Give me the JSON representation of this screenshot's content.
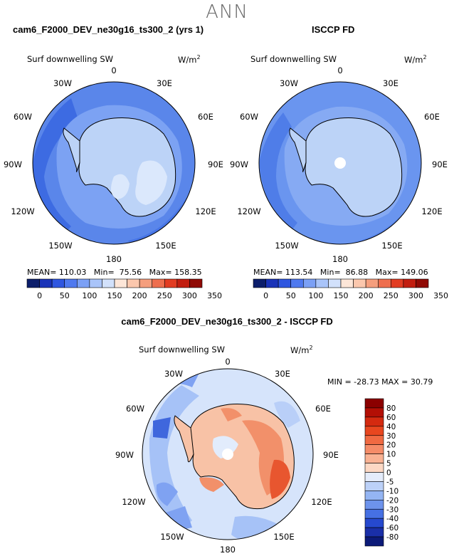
{
  "season": "ANN",
  "panel_left": {
    "title": "cam6_F2000_DEV_ne30g16_ts300_2 (yrs 1)",
    "variable": "Surf downwelling SW",
    "units": "W/m",
    "units_exp": "2",
    "stats": {
      "mean_label": "MEAN=",
      "mean": "110.03",
      "min_label": "Min=",
      "min": "75.56",
      "max_label": "Max=",
      "max": "158.35"
    }
  },
  "panel_right": {
    "title": "ISCCP FD",
    "variable": "Surf downwelling SW",
    "units": "W/m",
    "units_exp": "2",
    "stats": {
      "mean_label": "MEAN=",
      "mean": "113.54",
      "min_label": "Min=",
      "min": "86.88",
      "max_label": "Max=",
      "max": "149.06"
    }
  },
  "panel_diff": {
    "title": "cam6_F2000_DEV_ne30g16_ts300_2 - ISCCP FD",
    "variable": "Surf downwelling SW",
    "units": "W/m",
    "units_exp": "2",
    "minmax": "MIN = -28.73 MAX =  30.79"
  },
  "lon_labels": [
    "0",
    "30E",
    "60E",
    "90E",
    "120E",
    "150E",
    "180",
    "150W",
    "120W",
    "90W",
    "60W",
    "30W"
  ],
  "colorbar_top": {
    "labels": [
      "0",
      "50",
      "100",
      "150",
      "200",
      "250",
      "300",
      "350"
    ],
    "colors": [
      "#0c1e6b",
      "#1a33b8",
      "#2f56e0",
      "#4f79ef",
      "#7ba0f5",
      "#a9c4f9",
      "#d2e1fb",
      "#fde6d8",
      "#fbc7ad",
      "#f59e7d",
      "#ee6e4e",
      "#e23c22",
      "#c21e10",
      "#900a05"
    ]
  },
  "colorbar_diff": {
    "labels": [
      "80",
      "60",
      "40",
      "30",
      "20",
      "10",
      "5",
      "0",
      "-5",
      "-10",
      "-20",
      "-30",
      "-40",
      "-60",
      "-80"
    ],
    "colors": [
      "#8b0000",
      "#b30f05",
      "#d42a10",
      "#e8471f",
      "#f06a42",
      "#f58c68",
      "#f9b293",
      "#fcd8c4",
      "#e4ecfb",
      "#bcd1f8",
      "#94b5f3",
      "#6d93ec",
      "#4670e3",
      "#2649cf",
      "#1a2fa8",
      "#0c1a78"
    ]
  },
  "colors": {
    "land_fill_model": "#bcd3f7",
    "land_fill_obs": "#bcd3f7",
    "ocean_model": "#5b87ea",
    "ocean_obs": "#6a95ef",
    "diff_bg": "#d8e5fb"
  }
}
